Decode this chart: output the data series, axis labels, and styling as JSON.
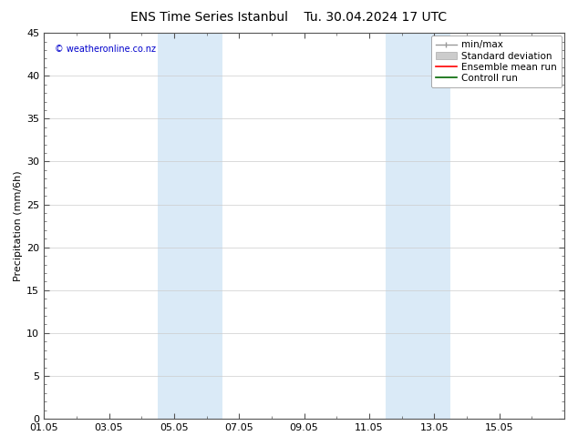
{
  "title": "ENS Time Series Istanbul",
  "title2": "Tu. 30.04.2024 17 UTC",
  "ylabel": "Precipitation (mm/6h)",
  "ylim": [
    0,
    45
  ],
  "yticks": [
    0,
    5,
    10,
    15,
    20,
    25,
    30,
    35,
    40,
    45
  ],
  "xlim_start": 0,
  "xlim_end": 16,
  "xtick_labels": [
    "01.05",
    "03.05",
    "05.05",
    "07.05",
    "09.05",
    "11.05",
    "13.05",
    "15.05"
  ],
  "xtick_positions": [
    0,
    2,
    4,
    6,
    8,
    10,
    12,
    14
  ],
  "shaded_regions": [
    {
      "xmin": 3.5,
      "xmax": 5.5,
      "color": "#daeaf7"
    },
    {
      "xmin": 10.5,
      "xmax": 12.5,
      "color": "#daeaf7"
    }
  ],
  "copyright_text": "© weatheronline.co.nz",
  "legend_items": [
    {
      "label": "min/max",
      "color": "#999999",
      "lw": 1.0
    },
    {
      "label": "Standard deviation",
      "color": "#bbbbbb",
      "lw": 5
    },
    {
      "label": "Ensemble mean run",
      "color": "#ff0000",
      "lw": 1.2
    },
    {
      "label": "Controll run",
      "color": "#006600",
      "lw": 1.2
    }
  ],
  "bg_color": "#ffffff",
  "plot_bg_color": "#ffffff",
  "grid_color": "#cccccc",
  "border_color": "#555555",
  "title_fontsize": 10,
  "axis_fontsize": 8,
  "legend_fontsize": 7.5,
  "copyright_color": "#0000cc"
}
